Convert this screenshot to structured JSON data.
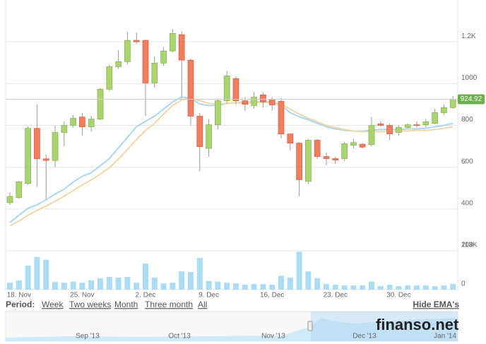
{
  "chart_data": {
    "type": "candlestick",
    "categories": [
      null,
      "18. Nov",
      null,
      null,
      null,
      null,
      null,
      null,
      "25. Nov",
      null,
      null,
      null,
      null,
      null,
      null,
      "2. Dec",
      null,
      null,
      null,
      null,
      null,
      null,
      "9. Dec",
      null,
      null,
      null,
      null,
      null,
      null,
      "16. Dec",
      null,
      null,
      null,
      null,
      null,
      null,
      "23. Dec",
      null,
      null,
      null,
      null,
      null,
      null,
      "30. Dec",
      null,
      null,
      null,
      null,
      null,
      null
    ],
    "open": [
      430,
      454,
      522,
      786,
      640,
      632,
      766,
      800,
      840,
      793,
      830,
      973,
      1081,
      1105,
      1207,
      1207,
      1003,
      1098,
      1156,
      1234,
      1112,
      844,
      690,
      803,
      918,
      1024,
      918,
      895,
      946,
      925,
      915,
      759,
      715,
      532,
      729,
      651,
      641,
      641,
      705,
      710,
      708,
      807,
      800,
      766,
      790,
      803,
      803,
      810,
      861,
      885
    ],
    "high": [
      480,
      535,
      795,
      900,
      660,
      800,
      820,
      850,
      860,
      845,
      980,
      1090,
      1160,
      1245,
      1245,
      1210,
      1130,
      1175,
      1260,
      1250,
      1120,
      860,
      830,
      925,
      1060,
      1035,
      935,
      960,
      955,
      935,
      930,
      760,
      720,
      735,
      735,
      670,
      650,
      720,
      735,
      715,
      840,
      820,
      810,
      800,
      810,
      820,
      830,
      880,
      900,
      940
    ],
    "low": [
      420,
      450,
      515,
      505,
      447,
      600,
      700,
      790,
      750,
      770,
      825,
      965,
      1070,
      1095,
      1190,
      844,
      980,
      1085,
      1150,
      929,
      800,
      580,
      650,
      780,
      905,
      900,
      870,
      880,
      885,
      870,
      740,
      680,
      461,
      520,
      640,
      610,
      615,
      630,
      690,
      690,
      700,
      795,
      730,
      750,
      785,
      790,
      790,
      805,
      850,
      880
    ],
    "close": [
      460,
      530,
      786,
      640,
      632,
      766,
      800,
      834,
      793,
      830,
      973,
      1081,
      1105,
      1207,
      1200,
      1003,
      1098,
      1156,
      1240,
      1112,
      844,
      698,
      803,
      918,
      1037,
      918,
      901,
      935,
      912,
      898,
      759,
      715,
      540,
      729,
      651,
      641,
      634,
      712,
      718,
      696,
      800,
      800,
      759,
      790,
      803,
      800,
      817,
      861,
      885,
      924.92
    ],
    "up_color": "#a9d46f",
    "down_color": "#f27d5f",
    "ema_series": [
      {
        "color": "#a8d8f0",
        "values": [
          335,
          370,
          403,
          420,
          444,
          471,
          495,
          529,
          556,
          573,
          607,
          641,
          692,
          742,
          793,
          820,
          844,
          878,
          912,
          936,
          929,
          902,
          895,
          895,
          905,
          908,
          912,
          912,
          915,
          912,
          895,
          861,
          841,
          827,
          810,
          793,
          783,
          776,
          773,
          773,
          776,
          780,
          780,
          780,
          783,
          783,
          786,
          793,
          800,
          810
        ]
      },
      {
        "color": "#f2d6a8",
        "values": [
          319,
          342,
          370,
          393,
          414,
          437,
          461,
          488,
          515,
          539,
          566,
          597,
          638,
          685,
          732,
          776,
          810,
          854,
          895,
          922,
          929,
          919,
          905,
          902,
          905,
          908,
          908,
          908,
          912,
          908,
          902,
          878,
          854,
          834,
          817,
          800,
          790,
          780,
          773,
          770,
          770,
          770,
          770,
          773,
          773,
          776,
          776,
          780,
          786,
          793
        ]
      }
    ],
    "ylim": [
      200,
      1400
    ],
    "yticks": [
      200,
      400,
      600,
      800,
      1000,
      {
        "value": 1200,
        "label": "1.2K"
      }
    ],
    "grid": true,
    "volume": {
      "color": "#aadcf5",
      "values": [
        20000,
        27000,
        70000,
        95000,
        87000,
        22000,
        20000,
        23000,
        20000,
        27000,
        33000,
        37000,
        35000,
        37000,
        20000,
        76000,
        35000,
        18000,
        20000,
        53000,
        51000,
        92000,
        25000,
        23000,
        20000,
        18000,
        14000,
        16000,
        16000,
        14000,
        40000,
        35000,
        110000,
        53000,
        33000,
        16000,
        14000,
        12000,
        12000,
        12000,
        23000,
        10000,
        14000,
        10000,
        12000,
        12000,
        12000,
        10000,
        12000,
        16000
      ],
      "ylim": [
        0,
        113000
      ],
      "yticks": [
        0,
        {
          "value": 113000,
          "label": "113K"
        }
      ]
    },
    "price_label_color": "#6ab04c"
  },
  "controls": {
    "period_label": "Period:",
    "buttons": [
      "Week",
      "Two weeks",
      "Month",
      "Three month",
      "All"
    ],
    "toggle": "Hide EMA's"
  },
  "navigator": {
    "labels": [
      "Sep '13",
      "Oct '13",
      "Nov '13",
      "Dec '13",
      "Jan '14"
    ]
  },
  "watermark": "finanso.net"
}
